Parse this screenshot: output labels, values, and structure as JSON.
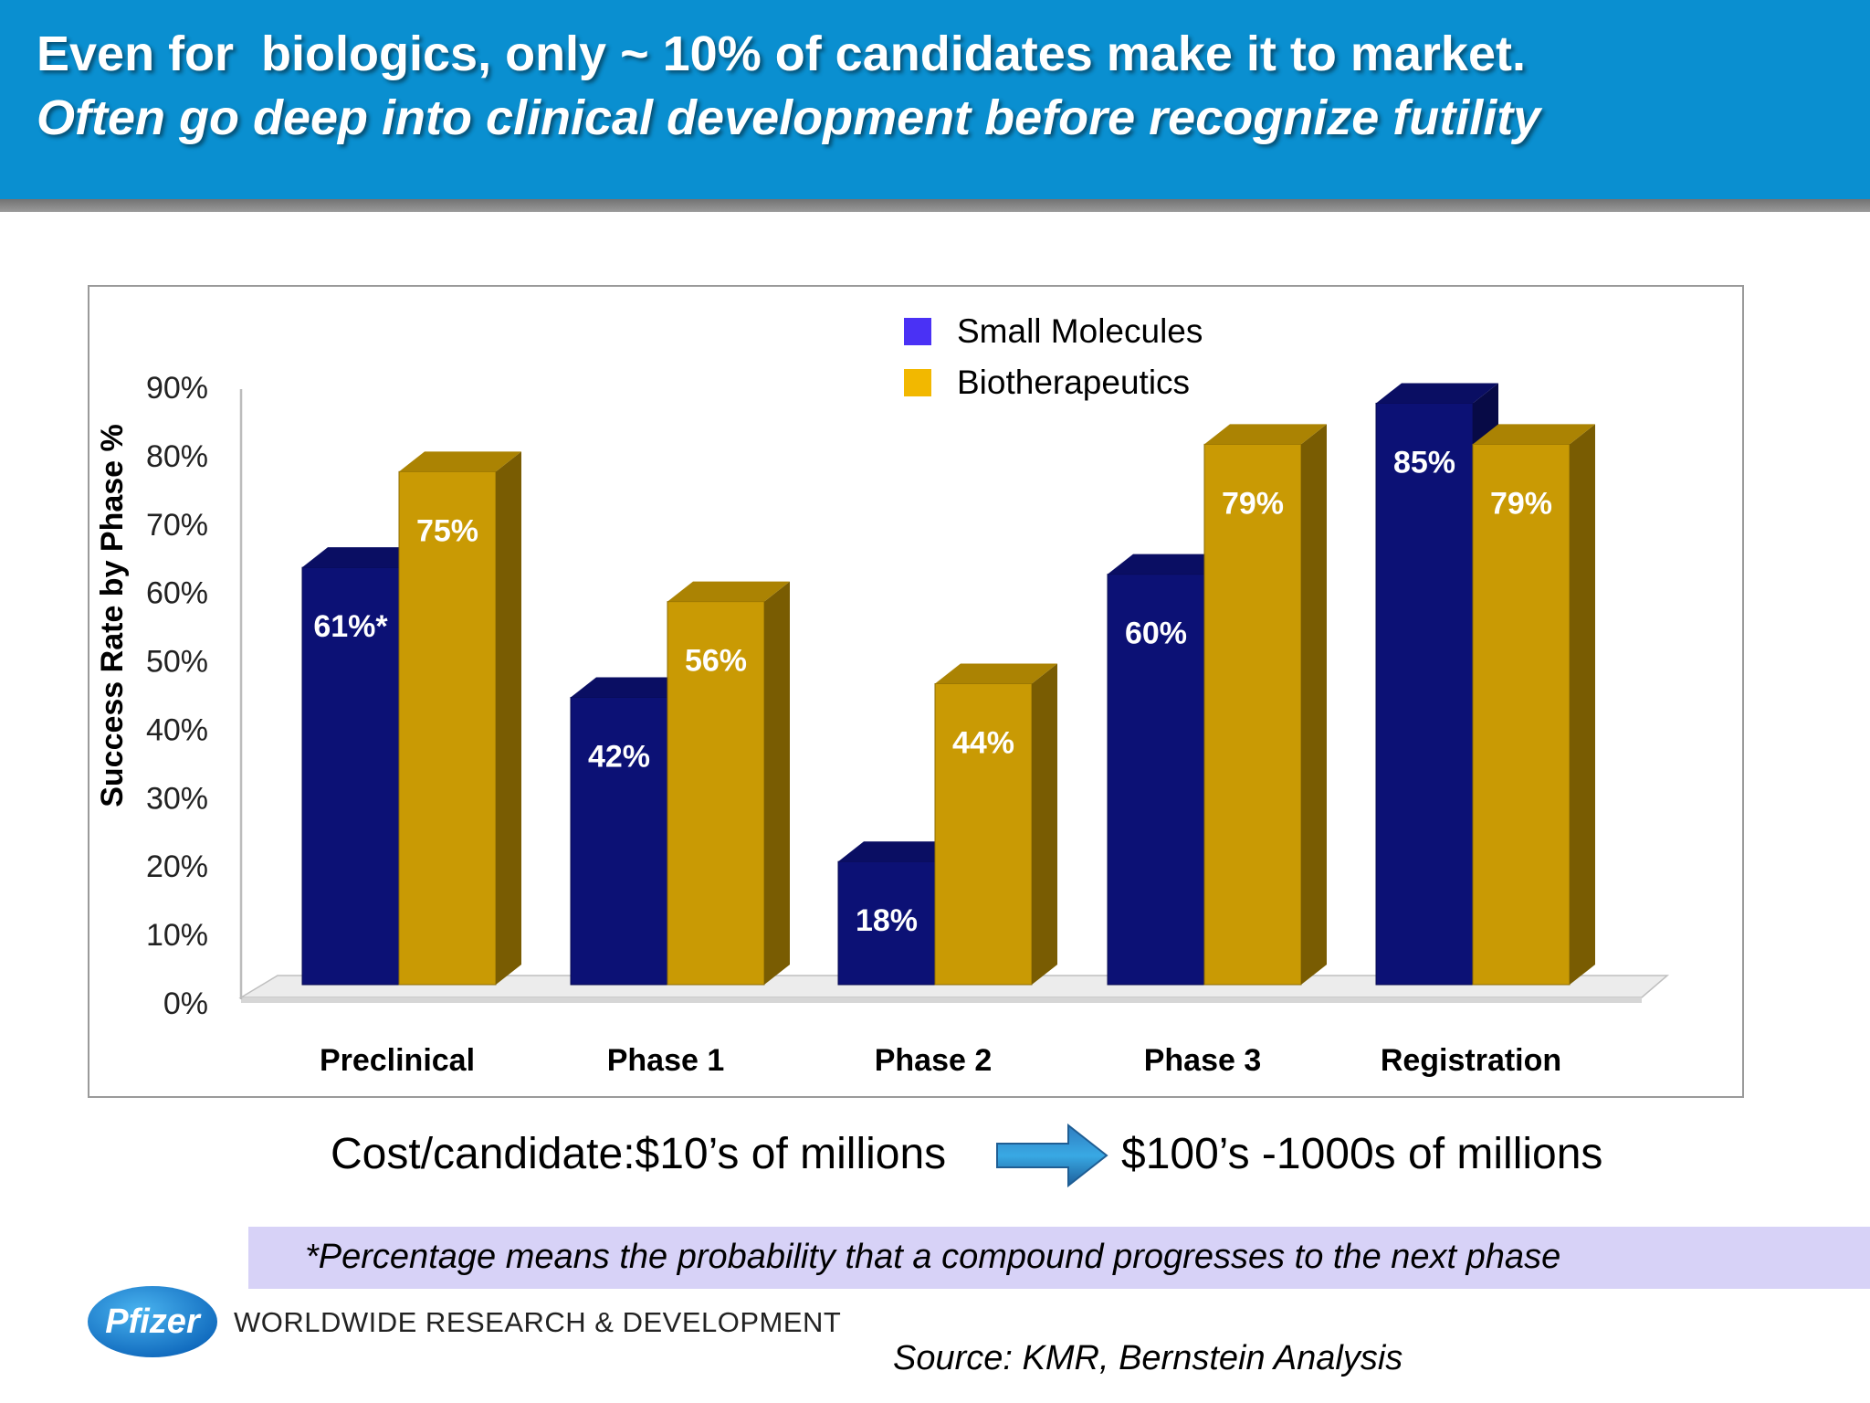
{
  "header": {
    "title": "Even for  biologics, only ~ 10% of candidates make it to market.",
    "subtitle": "Often go deep into clinical development before recognize futility"
  },
  "chart_data": {
    "type": "bar",
    "categories": [
      "Preclinical",
      "Phase 1",
      "Phase 2",
      "Phase 3",
      "Registration"
    ],
    "series": [
      {
        "name": "Small Molecules",
        "values": [
          61,
          42,
          18,
          60,
          85
        ],
        "labels": [
          "61%*",
          "42%",
          "18%",
          "60%",
          "85%"
        ],
        "color": "#0c1175"
      },
      {
        "name": "Biotherapeutics",
        "values": [
          75,
          56,
          44,
          79,
          79
        ],
        "labels": [
          "75%",
          "56%",
          "44%",
          "79%",
          "79%"
        ],
        "color": "#c99a04"
      }
    ],
    "yticks": [
      "0%",
      "10%",
      "20%",
      "30%",
      "40%",
      "50%",
      "60%",
      "70%",
      "80%",
      "90%"
    ],
    "ylabel": "Success Rate by Phase %",
    "ylim": [
      0,
      90
    ],
    "legend_position": "top-center",
    "legend_colors": [
      "#4a31f5",
      "#f2b800"
    ]
  },
  "cost": {
    "left": "Cost/candidate:$10’s of millions",
    "right": "$100’s -1000s of millions"
  },
  "footnote": "*Percentage means the probability that a compound progresses to the next phase",
  "footer": {
    "logo_text": "Pfizer",
    "division": "WORLDWIDE RESEARCH & DEVELOPMENT",
    "source": "Source: KMR, Bernstein Analysis"
  }
}
